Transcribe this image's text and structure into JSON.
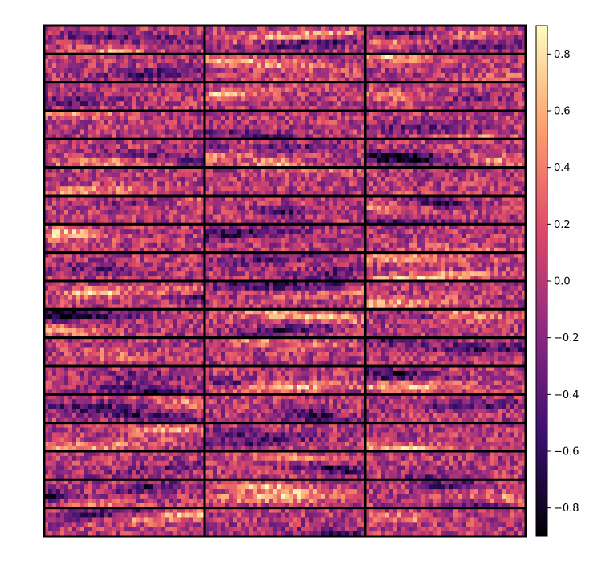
{
  "chart_data": {
    "type": "heatmap",
    "title": "",
    "xlabel": "",
    "ylabel": "",
    "grid": false,
    "panel_rows": 18,
    "panel_cols": 3,
    "cells_per_panel_x": 40,
    "cells_per_panel_y": 6,
    "colormap": "magma",
    "colormap_stops": [
      "#000004",
      "#3b0f70",
      "#8c2981",
      "#de4968",
      "#fe9f6d",
      "#fcfdbf"
    ],
    "value_range": [
      -0.9,
      0.9
    ],
    "colorbar": {
      "ticks": [
        0.8,
        0.6,
        0.4,
        0.2,
        0.0,
        -0.2,
        -0.4,
        -0.6,
        -0.8
      ],
      "tick_labels": [
        "0.8",
        "0.6",
        "0.4",
        "0.2",
        "0.0",
        "−0.2",
        "−0.4",
        "−0.6",
        "−0.8"
      ]
    },
    "panel_border_color": "#000000"
  }
}
